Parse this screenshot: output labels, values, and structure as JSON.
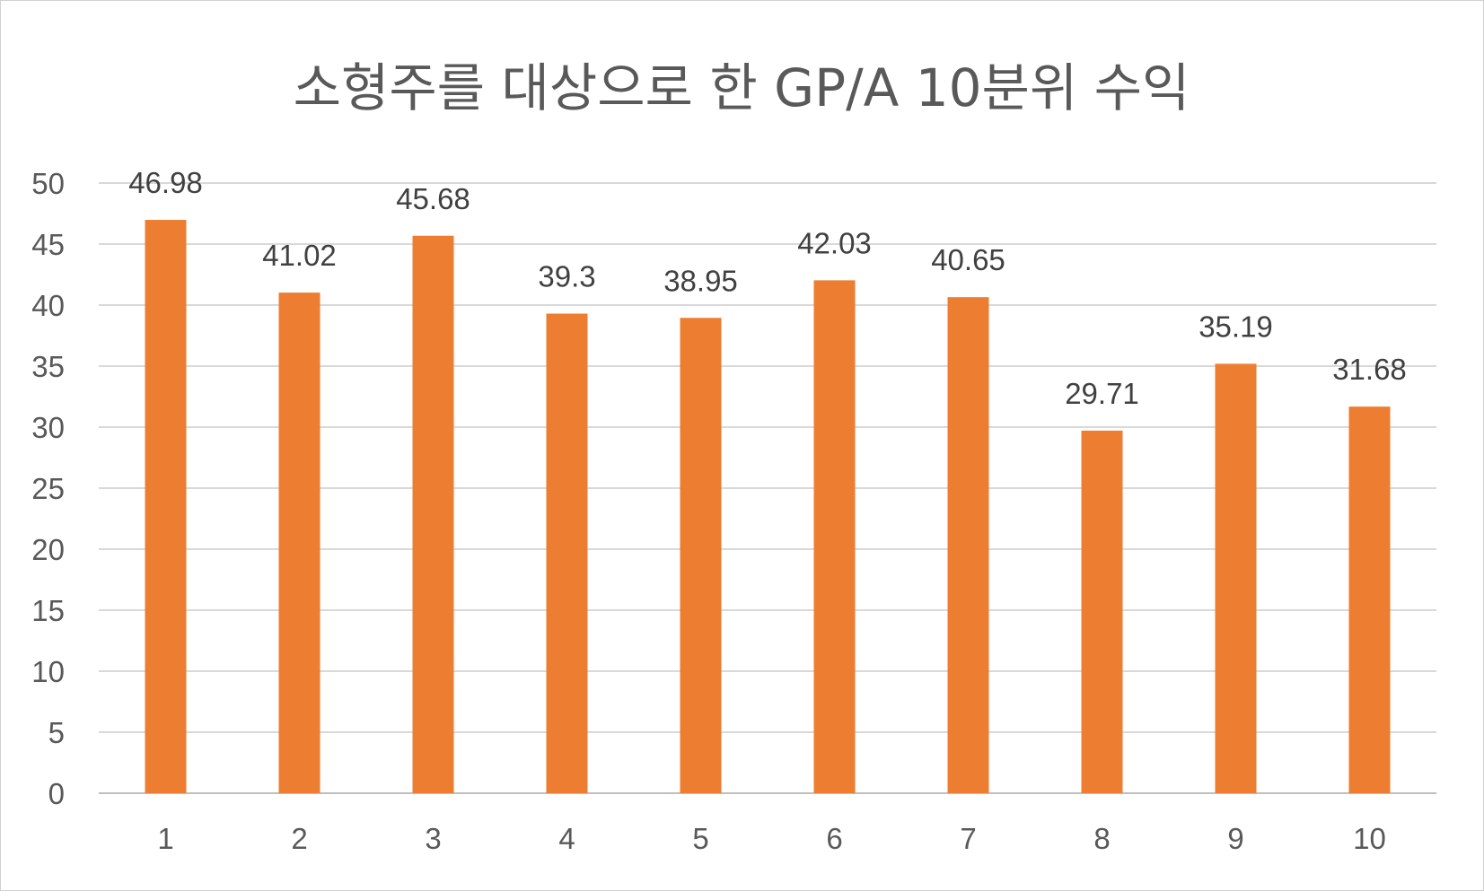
{
  "chart_data": {
    "type": "bar",
    "title": "소형주를 대상으로 한 GP/A 10분위 수익",
    "categories": [
      "1",
      "2",
      "3",
      "4",
      "5",
      "6",
      "7",
      "8",
      "9",
      "10"
    ],
    "values": [
      46.98,
      41.02,
      45.68,
      39.3,
      38.95,
      42.03,
      40.65,
      29.71,
      35.19,
      31.68
    ],
    "data_labels": [
      "46.98",
      "41.02",
      "45.68",
      "39.3",
      "38.95",
      "42.03",
      "40.65",
      "29.71",
      "35.19",
      "31.68"
    ],
    "y_ticks": [
      "0",
      "5",
      "10",
      "15",
      "20",
      "25",
      "30",
      "35",
      "40",
      "45",
      "50"
    ],
    "ylim": [
      0,
      50
    ],
    "grid": true,
    "legend": "none",
    "bar_color": "#ED7D31"
  }
}
